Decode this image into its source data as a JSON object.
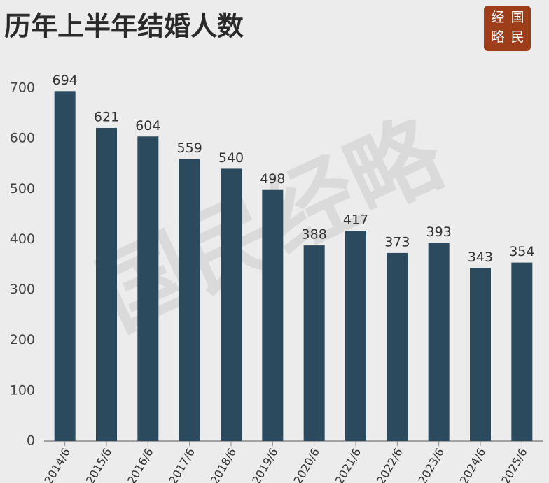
{
  "chart_data": {
    "type": "bar",
    "title": "历年上半年结婚人数",
    "logo": [
      "经",
      "国",
      "略",
      "民"
    ],
    "watermark": "国民经略",
    "categories": [
      "2014/6",
      "2015/6",
      "2016/6",
      "2017/6",
      "2018/6",
      "2019/6",
      "2020/6",
      "2021/6",
      "2022/6",
      "2023/6",
      "2024/6",
      "2025/6"
    ],
    "values": [
      694,
      621,
      604,
      559,
      540,
      498,
      388,
      417,
      373,
      393,
      343,
      354
    ],
    "color": "#2b4a5e",
    "ylim": [
      0,
      700
    ],
    "yticks": [
      0,
      100,
      200,
      300,
      400,
      500,
      600,
      700
    ],
    "grid": false
  }
}
